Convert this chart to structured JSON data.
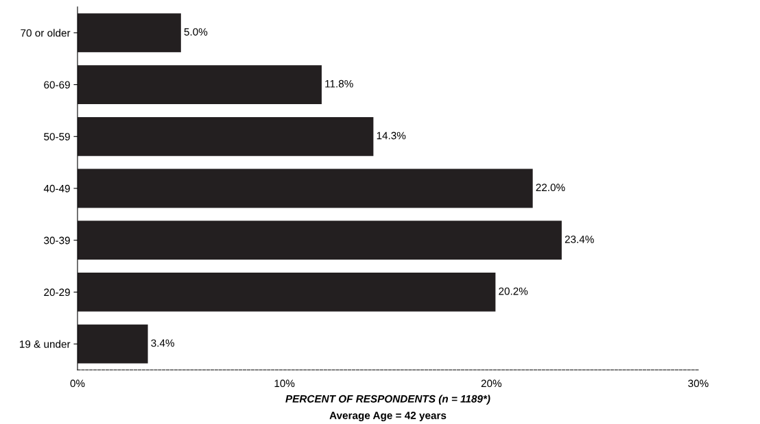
{
  "chart_data": {
    "type": "bar",
    "orientation": "horizontal",
    "xlabel": "PERCENT OF RESPONDENTS (n = 1189*)",
    "annotations": [
      "Average Age = 42 years"
    ],
    "categories": [
      "70 or older",
      "60-69",
      "50-59",
      "40-49",
      "30-39",
      "20-29",
      "19 & under"
    ],
    "values": [
      5.0,
      11.8,
      14.3,
      22.0,
      23.4,
      20.2,
      3.4
    ],
    "value_labels": [
      "5.0%",
      "11.8%",
      "14.3%",
      "22.0%",
      "23.4%",
      "20.2%",
      "3.4%"
    ],
    "color": "#231f20",
    "xlim": [
      0,
      30
    ],
    "xticks": [
      {
        "value": 0,
        "label": "0%"
      },
      {
        "value": 10,
        "label": "10%"
      },
      {
        "value": 20,
        "label": "20%"
      },
      {
        "value": 30,
        "label": "30%"
      }
    ]
  }
}
